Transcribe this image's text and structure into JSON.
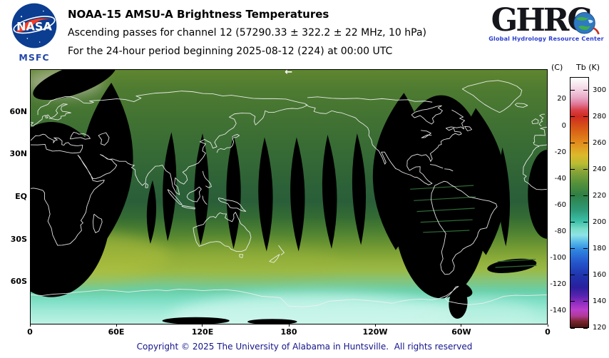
{
  "header": {
    "nasa_text": "NASA",
    "msfc": "MSFC",
    "title": "NOAA-15 AMSU-A Brightness Temperatures",
    "subtitle": "Ascending passes for channel 12 (57290.33 ± 322.2 ± 22 MHz, 10 hPa)",
    "period": "For the 24-hour period beginning 2025-08-12 (224) at 00:00 UTC",
    "ghrc_word": "GHRC",
    "ghrc_tagline": "Global Hydrology Resource Center"
  },
  "map": {
    "direction_arrow": "←"
  },
  "axes": {
    "lat_ticks": [
      {
        "label": "60N",
        "f": 0.1667
      },
      {
        "label": "30N",
        "f": 0.3333
      },
      {
        "label": "EQ",
        "f": 0.5
      },
      {
        "label": "30S",
        "f": 0.6667
      },
      {
        "label": "60S",
        "f": 0.8333
      }
    ],
    "lon_ticks": [
      {
        "label": "0",
        "f": 0
      },
      {
        "label": "60E",
        "f": 0.1667
      },
      {
        "label": "120E",
        "f": 0.3333
      },
      {
        "label": "180",
        "f": 0.5
      },
      {
        "label": "120W",
        "f": 0.6667
      },
      {
        "label": "60W",
        "f": 0.8333
      },
      {
        "label": "0",
        "f": 1
      }
    ]
  },
  "colorbar": {
    "unit_c": "(C)",
    "unit_k": "Tb (K)",
    "k_ticks": [
      300,
      280,
      260,
      240,
      220,
      200,
      180,
      160,
      140,
      120
    ],
    "c_ticks": [
      20,
      0,
      -20,
      -40,
      -60,
      -80,
      -100,
      -120,
      -140
    ],
    "domain_k": [
      310,
      120
    ],
    "stops": [
      [
        0,
        "#ffffff"
      ],
      [
        0.02,
        "#f8eef2"
      ],
      [
        0.05,
        "#f3cfe0"
      ],
      [
        0.08,
        "#e8a8c6"
      ],
      [
        0.105,
        "#e07898"
      ],
      [
        0.13,
        "#d84048"
      ],
      [
        0.155,
        "#cf2b20"
      ],
      [
        0.21,
        "#d95f16"
      ],
      [
        0.26,
        "#e28c1d"
      ],
      [
        0.31,
        "#ddb92b"
      ],
      [
        0.345,
        "#b8bc33"
      ],
      [
        0.37,
        "#8fa737"
      ],
      [
        0.42,
        "#57923a"
      ],
      [
        0.47,
        "#2f7f45"
      ],
      [
        0.53,
        "#2e9a77"
      ],
      [
        0.575,
        "#3cc0a8"
      ],
      [
        0.605,
        "#79dcc8"
      ],
      [
        0.63,
        "#8ee4e6"
      ],
      [
        0.66,
        "#55b8e8"
      ],
      [
        0.69,
        "#2f86e0"
      ],
      [
        0.74,
        "#2556cc"
      ],
      [
        0.79,
        "#1f35ad"
      ],
      [
        0.84,
        "#2a1f9e"
      ],
      [
        0.875,
        "#5a23b0"
      ],
      [
        0.9,
        "#8c2cc0"
      ],
      [
        0.93,
        "#bb3ecb"
      ],
      [
        0.955,
        "#b03a96"
      ],
      [
        0.975,
        "#7c2730"
      ],
      [
        1,
        "#4a1313"
      ]
    ]
  },
  "footer": {
    "copyright": "Copyright © 2025 The University of Alabama in Huntsville.  All rights reserved"
  },
  "chart_data": {
    "type": "heatmap",
    "title": "NOAA-15 AMSU-A Brightness Temperatures",
    "subtitle": "Ascending passes for channel 12 (57290.33 ± 322.2 ± 22 MHz, 10 hPa)",
    "period": "For the 24-hour period beginning 2025-08-12 (224) at 00:00 UTC",
    "projection": "equirectangular",
    "lon_range_deg_east": [
      0,
      360
    ],
    "lat_range": [
      90,
      -90
    ],
    "x_ticks": [
      "0",
      "60E",
      "120E",
      "180",
      "120W",
      "60W",
      "0"
    ],
    "y_ticks": [
      "60N",
      "30N",
      "EQ",
      "30S",
      "60S"
    ],
    "colorbar_label": "Tb (K)",
    "colorbar_range_k": [
      120,
      310
    ],
    "approx_tb_by_lat_k": [
      [
        90,
        241
      ],
      [
        60,
        238
      ],
      [
        30,
        235
      ],
      [
        0,
        231
      ],
      [
        -30,
        240
      ],
      [
        -45,
        247
      ],
      [
        -60,
        225
      ],
      [
        -75,
        207
      ],
      [
        -90,
        201
      ]
    ],
    "gradient_stops": [
      [
        0,
        "#5f8630"
      ],
      [
        0.08,
        "#4e7b31"
      ],
      [
        0.2,
        "#417233"
      ],
      [
        0.33,
        "#366a35"
      ],
      [
        0.45,
        "#2d6137"
      ],
      [
        0.52,
        "#2a5e39"
      ],
      [
        0.58,
        "#346b33"
      ],
      [
        0.64,
        "#4f8231"
      ],
      [
        0.7,
        "#739a33"
      ],
      [
        0.75,
        "#8fae3a"
      ],
      [
        0.79,
        "#9aba48"
      ],
      [
        0.83,
        "#84c47c"
      ],
      [
        0.87,
        "#68cfa8"
      ],
      [
        0.91,
        "#7fdfc6"
      ],
      [
        0.95,
        "#9fead7"
      ],
      [
        1,
        "#bdf2e3"
      ]
    ],
    "overlays": [
      {
        "cx": 0.1,
        "cy": 0.74,
        "rx": 0.17,
        "ry": 0.1,
        "color": "#b2c13e",
        "opacity": 0.55
      },
      {
        "cx": 0.4,
        "cy": 0.76,
        "rx": 0.2,
        "ry": 0.07,
        "color": "#9cb43a",
        "opacity": 0.35
      },
      {
        "cx": 0.55,
        "cy": 0.98,
        "rx": 0.28,
        "ry": 0.1,
        "color": "#d2f8ee",
        "opacity": 0.75
      },
      {
        "cx": 0.86,
        "cy": 0.97,
        "rx": 0.12,
        "ry": 0.07,
        "color": "#c6f4e6",
        "opacity": 0.5
      },
      {
        "cx": 0.065,
        "cy": 0.05,
        "rx": 0.075,
        "ry": 0.055,
        "color": "#d8cfc8",
        "opacity": 0.55
      }
    ],
    "swaths": [
      {
        "shape": "ellipse",
        "cx": 0.085,
        "cy": 0.04,
        "rx": 0.085,
        "ry": 0.055,
        "rot": -20
      },
      {
        "shape": "ellipse",
        "cx": 0.04,
        "cy": 0.55,
        "rx": 0.115,
        "ry": 0.345,
        "rot": 0
      },
      {
        "shape": "lens",
        "cx": 0.148,
        "cy": 0.37,
        "rx": 0.05,
        "ry": 0.32,
        "rot": 3
      },
      {
        "shape": "lens",
        "cx": 0.234,
        "cy": 0.56,
        "rx": 0.009,
        "ry": 0.125,
        "rot": 2
      },
      {
        "shape": "lens",
        "cx": 0.269,
        "cy": 0.46,
        "rx": 0.013,
        "ry": 0.215,
        "rot": 2
      },
      {
        "shape": "lens",
        "cx": 0.331,
        "cy": 0.47,
        "rx": 0.014,
        "ry": 0.22,
        "rot": 1
      },
      {
        "shape": "lens",
        "cx": 0.393,
        "cy": 0.48,
        "rx": 0.014,
        "ry": 0.225,
        "rot": 0
      },
      {
        "shape": "lens",
        "cx": 0.455,
        "cy": 0.49,
        "rx": 0.014,
        "ry": 0.225,
        "rot": -1
      },
      {
        "shape": "lens",
        "cx": 0.517,
        "cy": 0.49,
        "rx": 0.014,
        "ry": 0.225,
        "rot": -1
      },
      {
        "shape": "lens",
        "cx": 0.579,
        "cy": 0.48,
        "rx": 0.014,
        "ry": 0.225,
        "rot": -2
      },
      {
        "shape": "lens",
        "cx": 0.636,
        "cy": 0.47,
        "rx": 0.013,
        "ry": 0.22,
        "rot": -2
      },
      {
        "shape": "lens",
        "cx": 0.715,
        "cy": 0.4,
        "rx": 0.052,
        "ry": 0.31,
        "rot": 3
      },
      {
        "shape": "ellipse",
        "cx": 0.795,
        "cy": 0.5,
        "rx": 0.095,
        "ry": 0.4,
        "rot": 0
      },
      {
        "shape": "lens",
        "cx": 0.872,
        "cy": 0.44,
        "rx": 0.048,
        "ry": 0.29,
        "rot": -4
      },
      {
        "shape": "lens",
        "cx": 0.917,
        "cy": 0.5,
        "rx": 0.011,
        "ry": 0.195,
        "rot": -2
      },
      {
        "shape": "ellipse",
        "cx": 1.0,
        "cy": 0.49,
        "rx": 0.037,
        "ry": 0.175,
        "rot": 0
      },
      {
        "shape": "ellipse",
        "cx": 0.932,
        "cy": 0.772,
        "rx": 0.048,
        "ry": 0.026,
        "rot": -7
      },
      {
        "shape": "ellipse",
        "cx": 0.8,
        "cy": 0.845,
        "rx": 0.058,
        "ry": 0.04,
        "rot": 18
      },
      {
        "shape": "ellipse",
        "cx": 0.828,
        "cy": 0.92,
        "rx": 0.018,
        "ry": 0.06,
        "rot": 4
      },
      {
        "shape": "ellipse",
        "cx": 0.32,
        "cy": 0.988,
        "rx": 0.065,
        "ry": 0.014,
        "rot": 0
      },
      {
        "shape": "ellipse",
        "cx": 0.468,
        "cy": 0.992,
        "rx": 0.048,
        "ry": 0.011,
        "rot": 0
      }
    ],
    "streaks": [
      {
        "x1": 0.735,
        "y1": 0.47,
        "x2": 0.858,
        "y2": 0.455
      },
      {
        "x1": 0.742,
        "y1": 0.515,
        "x2": 0.862,
        "y2": 0.5
      },
      {
        "x1": 0.748,
        "y1": 0.558,
        "x2": 0.86,
        "y2": 0.545
      },
      {
        "x1": 0.755,
        "y1": 0.6,
        "x2": 0.856,
        "y2": 0.59
      },
      {
        "x1": 0.76,
        "y1": 0.64,
        "x2": 0.85,
        "y2": 0.632
      },
      {
        "x1": 0.905,
        "y1": 0.755,
        "x2": 0.978,
        "y2": 0.746
      },
      {
        "x1": 0.9,
        "y1": 0.778,
        "x2": 0.98,
        "y2": 0.77
      }
    ],
    "streak_color": "#2e6b36",
    "no_data_color": "#000000"
  }
}
